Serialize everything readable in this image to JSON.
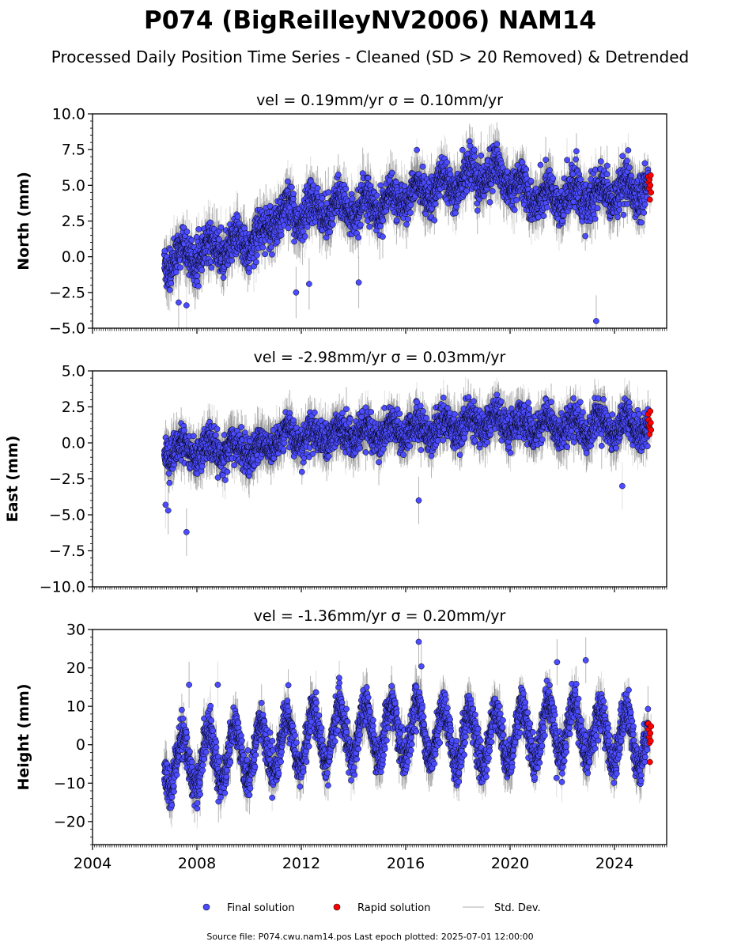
{
  "figure": {
    "title": "P074 (BigReilleyNV2006) NAM14",
    "subtitle": "Processed Daily Position Time Series - Cleaned (SD > 20 Removed) & Detrended",
    "footer": "Source file: P074.cwu.nam14.pos  Last epoch plotted: 2025-07-01 12:00:00",
    "colors": {
      "final": "#4b4bff",
      "rapid": "#ff0000",
      "std": "#a0a0a0",
      "edge": "#000000"
    }
  },
  "legend": {
    "placement": "bottom-center",
    "final": "Final solution",
    "rapid": "Rapid solution",
    "std": "Std. Dev."
  },
  "chart_data": [
    {
      "type": "scatter",
      "title": "vel = 0.19mm/yr   σ = 0.10mm/yr",
      "ylabel": "North (mm)",
      "xlim": [
        2004.0,
        2026.0
      ],
      "ylim": [
        -5.0,
        10.0
      ],
      "yticks": [
        "−5.0",
        "−2.5",
        "0.0",
        "2.5",
        "5.0",
        "7.5",
        "10.0"
      ],
      "ytick_values": [
        -5.0,
        -2.5,
        0.0,
        2.5,
        5.0,
        7.5,
        10.0
      ],
      "grid": false,
      "trend": {
        "x": [
          2006.75,
          2008.0,
          2010.5,
          2011.0,
          2014.0,
          2016.0,
          2018.5,
          2019.5,
          2021.0,
          2023.0,
          2025.35
        ],
        "y": [
          -0.3,
          0.2,
          1.3,
          3.0,
          3.4,
          4.2,
          5.6,
          5.8,
          4.1,
          4.3,
          5.0
        ]
      },
      "seasonal_amplitude": 0.7,
      "scatter_sd": 1.0,
      "std_dev": 1.2,
      "outliers": {
        "x": [
          2007.3,
          2007.6,
          2011.8,
          2012.3,
          2014.2,
          2023.3
        ],
        "y": [
          -3.2,
          -3.4,
          -2.5,
          -1.9,
          -1.8,
          -4.5
        ]
      },
      "rapid": {
        "x_start": 2025.3,
        "x_end": 2025.4,
        "y": [
          5.6,
          5.2,
          4.8,
          5.4,
          4.0,
          5.0,
          5.7,
          4.5
        ]
      }
    },
    {
      "type": "scatter",
      "title": "vel = -2.98mm/yr   σ = 0.03mm/yr",
      "ylabel": "East (mm)",
      "xlim": [
        2004.0,
        2026.0
      ],
      "ylim": [
        -10.0,
        5.0
      ],
      "yticks": [
        "−10.0",
        "−7.5",
        "−5.0",
        "−2.5",
        "0.0",
        "2.5",
        "5.0"
      ],
      "ytick_values": [
        -10.0,
        -7.5,
        -5.0,
        -2.5,
        0.0,
        2.5,
        5.0
      ],
      "grid": false,
      "trend": {
        "x": [
          2006.75,
          2008.0,
          2010.5,
          2011.0,
          2014.0,
          2016.0,
          2018.0,
          2019.5,
          2021.0,
          2023.0,
          2025.35
        ],
        "y": [
          -0.6,
          -0.4,
          -0.5,
          0.3,
          0.6,
          0.9,
          1.2,
          1.5,
          1.1,
          1.2,
          1.1
        ]
      },
      "seasonal_amplitude": 0.55,
      "scatter_sd": 0.85,
      "std_dev": 1.1,
      "outliers": {
        "x": [
          2006.8,
          2006.9,
          2007.6,
          2016.5,
          2024.3
        ],
        "y": [
          -4.3,
          -4.7,
          -6.2,
          -4.0,
          -3.0
        ]
      },
      "rapid": {
        "x_start": 2025.3,
        "x_end": 2025.4,
        "y": [
          2.0,
          1.6,
          1.2,
          0.6,
          1.0,
          2.2,
          1.4,
          0.9
        ]
      }
    },
    {
      "type": "scatter",
      "title": "vel = -1.36mm/yr   σ = 0.20mm/yr",
      "ylabel": "Height (mm)",
      "xlim": [
        2004.0,
        2026.0
      ],
      "ylim": [
        -26.0,
        30.0
      ],
      "yticks": [
        "−20",
        "−10",
        "0",
        "10",
        "20",
        "30"
      ],
      "ytick_values": [
        -20,
        -10,
        0,
        10,
        20,
        30
      ],
      "xticks": [
        "2004",
        "2008",
        "2012",
        "2016",
        "2020",
        "2024"
      ],
      "xtick_values": [
        2004,
        2008,
        2012,
        2016,
        2020,
        2024
      ],
      "grid": false,
      "trend": {
        "x": [
          2006.75,
          2010.0,
          2013.0,
          2016.0,
          2019.0,
          2022.0,
          2025.35
        ],
        "y": [
          -5.0,
          -2.0,
          3.0,
          4.0,
          1.0,
          4.0,
          1.0
        ]
      },
      "seasonal_amplitude": 7.0,
      "scatter_sd": 3.5,
      "std_dev": 4.0,
      "outliers": {
        "x": [
          2007.7,
          2008.8,
          2016.5,
          2016.6,
          2021.8,
          2022.9
        ],
        "y": [
          15.6,
          15.6,
          26.8,
          20.4,
          21.5,
          22.0
        ]
      },
      "rapid": {
        "x_start": 2025.3,
        "x_end": 2025.4,
        "y": [
          5.5,
          4.0,
          2.0,
          0.5,
          -4.5,
          3.0,
          1.0,
          4.8
        ]
      }
    }
  ]
}
